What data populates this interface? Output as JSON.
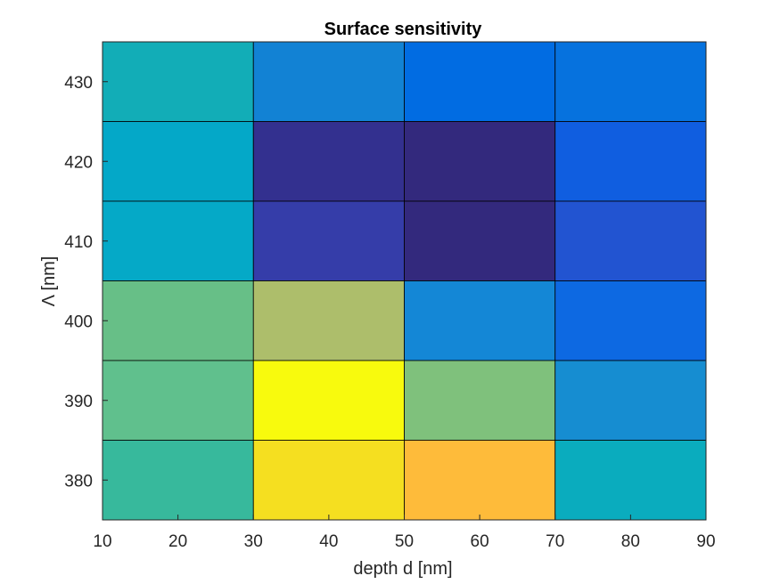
{
  "chart_data": {
    "type": "heatmap",
    "title": "Surface sensitivity",
    "xlabel": "depth d [nm]",
    "ylabel": "Λ [nm]",
    "x_ticks": [
      "10",
      "20",
      "30",
      "40",
      "50",
      "60",
      "70",
      "80",
      "90"
    ],
    "y_ticks": [
      "380",
      "390",
      "400",
      "410",
      "420",
      "430"
    ],
    "xlim": [
      10,
      90
    ],
    "ylim": [
      375,
      435
    ],
    "x_bins": [
      [
        10,
        30
      ],
      [
        30,
        50
      ],
      [
        50,
        70
      ],
      [
        70,
        90
      ]
    ],
    "y_values": [
      430,
      420,
      410,
      400,
      390,
      380
    ],
    "cells": [
      [
        "#12adb7",
        "#1282d4",
        "#016ce2",
        "#0672de"
      ],
      [
        "#04a8c8",
        "#33308f",
        "#33297d",
        "#105ee0"
      ],
      [
        "#05a9c7",
        "#353da9",
        "#33297d",
        "#2254d1"
      ],
      [
        "#67bf87",
        "#adbe6b",
        "#1487d6",
        "#0d69e2"
      ],
      [
        "#60c08d",
        "#f8fa0d",
        "#7fc17c",
        "#168dd1"
      ],
      [
        "#37b99c",
        "#f5df20",
        "#febb3a",
        "#0aacbe"
      ]
    ],
    "colormap": "parula",
    "grid": false,
    "legend": "none"
  }
}
